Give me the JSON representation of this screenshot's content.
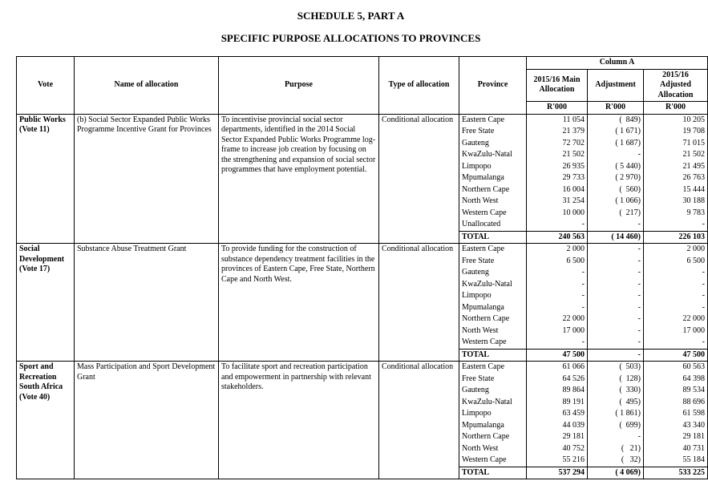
{
  "title": "SCHEDULE 5, PART A",
  "subtitle": "SPECIFIC PURPOSE ALLOCATIONS TO PROVINCES",
  "headers": {
    "vote": "Vote",
    "name": "Name of allocation",
    "purpose": "Purpose",
    "type": "Type of allocation",
    "province": "Province",
    "columnA": "Column A",
    "main": "2015/16 Main Allocation",
    "adj": "Adjustment",
    "adjusted": "2015/16 Adjusted Allocation",
    "unit": "R'000",
    "total": "TOTAL"
  },
  "sections": [
    {
      "vote": "Public Works (Vote 11)",
      "name": "(b) Social Sector Expanded Public Works Programme Incentive Grant for Provinces",
      "purpose": "To incentivise provincial social sector departments, identified in the 2014 Social Sector  Expanded Public Works Programme log-frame to increase job creation by focusing on the strengthening and expansion of social sector programmes that have employment potential.",
      "type": "Conditional allocation",
      "rows": [
        {
          "province": "Eastern Cape",
          "main": "11 054",
          "adj": "(  849)",
          "adjusted": "10 205"
        },
        {
          "province": "Free State",
          "main": "21 379",
          "adj": "( 1 671)",
          "adjusted": "19 708"
        },
        {
          "province": "Gauteng",
          "main": "72 702",
          "adj": "( 1 687)",
          "adjusted": "71 015"
        },
        {
          "province": "KwaZulu-Natal",
          "main": "21 502",
          "adj": "-",
          "adjusted": "21 502"
        },
        {
          "province": "Limpopo",
          "main": "26 935",
          "adj": "( 5 440)",
          "adjusted": "21 495"
        },
        {
          "province": "Mpumalanga",
          "main": "29 733",
          "adj": "( 2 970)",
          "adjusted": "26 763"
        },
        {
          "province": "Northern Cape",
          "main": "16 004",
          "adj": "(  560)",
          "adjusted": "15 444"
        },
        {
          "province": "North West",
          "main": "31 254",
          "adj": "( 1 066)",
          "adjusted": "30 188"
        },
        {
          "province": "Western Cape",
          "main": "10 000",
          "adj": "(  217)",
          "adjusted": "9 783"
        },
        {
          "province": "Unallocated",
          "main": "-",
          "adj": "-",
          "adjusted": "-"
        }
      ],
      "total": {
        "main": "240 563",
        "adj": "( 14 460)",
        "adjusted": "226 103"
      }
    },
    {
      "vote": "Social Development (Vote 17)",
      "name": "Substance Abuse Treatment Grant",
      "purpose": "To provide funding for the construction of substance dependency treatment facilities in the provinces of Eastern Cape, Free State, Northern Cape and North West.",
      "type": "Conditional allocation",
      "rows": [
        {
          "province": "Eastern Cape",
          "main": "2 000",
          "adj": "-",
          "adjusted": "2 000"
        },
        {
          "province": "Free State",
          "main": "6 500",
          "adj": "-",
          "adjusted": "6 500"
        },
        {
          "province": "Gauteng",
          "main": "-",
          "adj": "-",
          "adjusted": "-"
        },
        {
          "province": "KwaZulu-Natal",
          "main": "-",
          "adj": "-",
          "adjusted": "-"
        },
        {
          "province": "Limpopo",
          "main": "-",
          "adj": "-",
          "adjusted": "-"
        },
        {
          "province": "Mpumalanga",
          "main": "-",
          "adj": "-",
          "adjusted": "-"
        },
        {
          "province": "Northern Cape",
          "main": "22 000",
          "adj": "-",
          "adjusted": "22 000"
        },
        {
          "province": "North West",
          "main": "17 000",
          "adj": "-",
          "adjusted": "17 000"
        },
        {
          "province": "Western Cape",
          "main": "-",
          "adj": "-",
          "adjusted": "-"
        }
      ],
      "total": {
        "main": "47 500",
        "adj": "-",
        "adjusted": "47 500"
      }
    },
    {
      "vote": "Sport and Recreation South Africa (Vote 40)",
      "name": "Mass Participation and Sport Development Grant",
      "purpose": "To facilitate sport and recreation participation and empowerment in partnership with relevant stakeholders.",
      "type": "Conditional allocation",
      "rows": [
        {
          "province": "Eastern Cape",
          "main": "61 066",
          "adj": "(  503)",
          "adjusted": "60 563"
        },
        {
          "province": "Free State",
          "main": "64 526",
          "adj": "(  128)",
          "adjusted": "64 398"
        },
        {
          "province": "Gauteng",
          "main": "89 864",
          "adj": "(  330)",
          "adjusted": "89 534"
        },
        {
          "province": "KwaZulu-Natal",
          "main": "89 191",
          "adj": "(  495)",
          "adjusted": "88 696"
        },
        {
          "province": "Limpopo",
          "main": "63 459",
          "adj": "( 1 861)",
          "adjusted": "61 598"
        },
        {
          "province": "Mpumalanga",
          "main": "44 039",
          "adj": "(  699)",
          "adjusted": "43 340"
        },
        {
          "province": "Northern Cape",
          "main": "29 181",
          "adj": "-",
          "adjusted": "29 181"
        },
        {
          "province": "North West",
          "main": "40 752",
          "adj": "(   21)",
          "adjusted": "40 731"
        },
        {
          "province": "Western Cape",
          "main": "55 216",
          "adj": "(   32)",
          "adjusted": "55 184"
        }
      ],
      "total": {
        "main": "537 294",
        "adj": "( 4 069)",
        "adjusted": "533 225"
      }
    }
  ]
}
